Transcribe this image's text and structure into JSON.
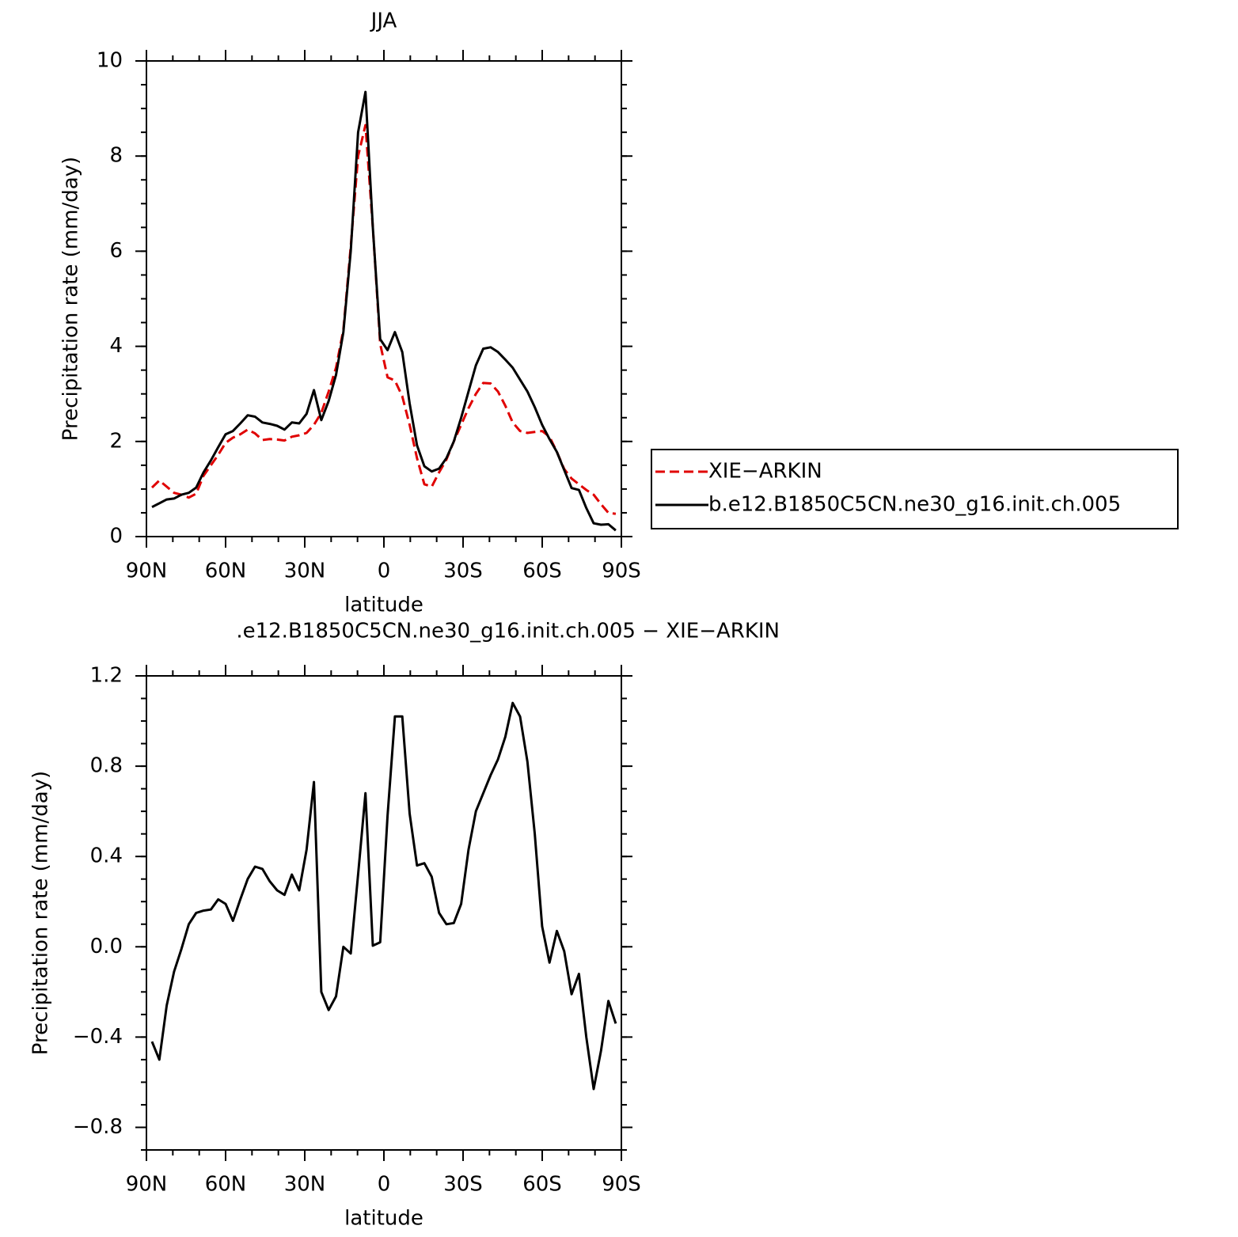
{
  "chart_data": [
    {
      "type": "line",
      "title": "JJA",
      "xlabel": "latitude",
      "ylabel": "Precipitation rate (mm/day)",
      "x": [
        87.9,
        85.11,
        82.32,
        79.53,
        76.74,
        73.95,
        71.16,
        68.37,
        65.58,
        62.79,
        60.0,
        57.21,
        54.42,
        51.63,
        48.84,
        46.05,
        43.26,
        40.47,
        37.68,
        34.89,
        32.1,
        29.31,
        26.52,
        23.73,
        20.94,
        18.15,
        15.36,
        12.57,
        9.78,
        6.99,
        4.2,
        1.41,
        -1.38,
        -4.17,
        -6.96,
        -9.75,
        -12.54,
        -15.33,
        -18.12,
        -20.91,
        -23.7,
        -26.49,
        -29.28,
        -32.07,
        -34.86,
        -37.65,
        -40.44,
        -43.23,
        -46.02,
        -48.81,
        -51.6,
        -54.39,
        -57.18,
        -59.97,
        -62.76,
        -65.55,
        -68.34,
        -71.13,
        -73.92,
        -76.71,
        -79.5,
        -82.29,
        -85.08,
        -87.87
      ],
      "series": [
        {
          "name": "XIE−ARKIN",
          "color": "#e00000",
          "dash": true,
          "values": [
            1.03,
            1.18,
            1.05,
            0.92,
            0.88,
            0.82,
            0.9,
            1.28,
            1.5,
            1.72,
            1.97,
            2.08,
            2.15,
            2.25,
            2.17,
            2.03,
            2.05,
            2.04,
            2.02,
            2.1,
            2.13,
            2.18,
            2.35,
            2.6,
            3.05,
            3.55,
            4.35,
            6.1,
            8.0,
            8.65,
            6.5,
            4.05,
            3.35,
            3.28,
            2.95,
            2.35,
            1.65,
            1.1,
            1.05,
            1.35,
            1.62,
            2.0,
            2.35,
            2.7,
            3.0,
            3.23,
            3.22,
            3.05,
            2.75,
            2.4,
            2.22,
            2.18,
            2.2,
            2.22,
            2.1,
            1.78,
            1.42,
            1.22,
            1.1,
            0.98,
            0.88,
            0.68,
            0.5,
            0.48
          ]
        },
        {
          "name": "b.e12.B1850C5CN.ne30_g16.init.ch.005",
          "color": "#000000",
          "dash": false,
          "values": [
            0.62,
            0.7,
            0.78,
            0.8,
            0.88,
            0.92,
            1.03,
            1.35,
            1.6,
            1.88,
            2.15,
            2.22,
            2.38,
            2.55,
            2.52,
            2.4,
            2.37,
            2.33,
            2.25,
            2.4,
            2.38,
            2.58,
            3.08,
            2.45,
            2.85,
            3.4,
            4.3,
            6.0,
            8.5,
            9.35,
            6.5,
            4.15,
            3.92,
            4.3,
            3.88,
            2.8,
            1.92,
            1.48,
            1.37,
            1.43,
            1.65,
            2.0,
            2.5,
            3.05,
            3.6,
            3.95,
            3.98,
            3.88,
            3.72,
            3.55,
            3.3,
            3.05,
            2.72,
            2.35,
            2.05,
            1.78,
            1.4,
            1.02,
            0.98,
            0.6,
            0.28,
            0.25,
            0.26,
            0.13
          ]
        }
      ],
      "xlim": [
        90,
        -90
      ],
      "xticks": [
        {
          "value": 90,
          "label": "90N"
        },
        {
          "value": 60,
          "label": "60N"
        },
        {
          "value": 30,
          "label": "30N"
        },
        0,
        {
          "value": -30,
          "label": "30S"
        },
        {
          "value": -60,
          "label": "60S"
        },
        {
          "value": -90,
          "label": "90S"
        }
      ],
      "ylim": [
        0,
        10
      ],
      "yticks": [
        0,
        2,
        4,
        6,
        8,
        10
      ],
      "legend": "right"
    },
    {
      "type": "line",
      "title": ".e12.B1850C5CN.ne30_g16.init.ch.005 − XIE−ARKIN",
      "xlabel": "latitude",
      "ylabel": "Precipitation rate (mm/day)",
      "x": [
        87.9,
        85.11,
        82.32,
        79.53,
        76.74,
        73.95,
        71.16,
        68.37,
        65.58,
        62.79,
        60.0,
        57.21,
        54.42,
        51.63,
        48.84,
        46.05,
        43.26,
        40.47,
        37.68,
        34.89,
        32.1,
        29.31,
        26.52,
        23.73,
        20.94,
        18.15,
        15.36,
        12.57,
        9.78,
        6.99,
        4.2,
        1.41,
        -1.38,
        -4.17,
        -6.96,
        -9.75,
        -12.54,
        -15.33,
        -18.12,
        -20.91,
        -23.7,
        -26.49,
        -29.28,
        -32.07,
        -34.86,
        -37.65,
        -40.44,
        -43.23,
        -46.02,
        -48.81,
        -51.6,
        -54.39,
        -57.18,
        -59.97,
        -62.76,
        -65.55,
        -68.34,
        -71.13,
        -73.92,
        -76.71,
        -79.5,
        -82.29,
        -85.08,
        -87.87
      ],
      "series": [
        {
          "color": "#000000",
          "dash": false,
          "values": [
            -0.42,
            -0.5,
            -0.26,
            -0.11,
            -0.01,
            0.1,
            0.15,
            0.16,
            0.165,
            0.21,
            0.19,
            0.115,
            0.21,
            0.3,
            0.355,
            0.345,
            0.29,
            0.25,
            0.23,
            0.32,
            0.25,
            0.43,
            0.73,
            -0.2,
            -0.28,
            -0.22,
            0.0,
            -0.03,
            0.32,
            0.68,
            0.005,
            0.02,
            0.58,
            1.02,
            1.02,
            0.59,
            0.36,
            0.37,
            0.31,
            0.15,
            0.1,
            0.105,
            0.19,
            0.43,
            0.6,
            0.68,
            0.76,
            0.83,
            0.93,
            1.08,
            1.02,
            0.82,
            0.5,
            0.09,
            -0.07,
            0.07,
            -0.02,
            -0.21,
            -0.12,
            -0.4,
            -0.63,
            -0.46,
            -0.24,
            -0.34
          ]
        }
      ],
      "xlim": [
        90,
        -90
      ],
      "xticks": [
        {
          "value": 90,
          "label": "90N"
        },
        {
          "value": 60,
          "label": "60N"
        },
        {
          "value": 30,
          "label": "30N"
        },
        0,
        {
          "value": -30,
          "label": "30S"
        },
        {
          "value": -60,
          "label": "60S"
        },
        {
          "value": -90,
          "label": "90S"
        }
      ],
      "ylim": [
        -0.9,
        1.2
      ],
      "yticks": [
        {
          "value": -0.8,
          "label": "−0.8"
        },
        {
          "value": -0.4,
          "label": "−0.4"
        },
        {
          "value": 0,
          "label": "0.0"
        },
        0.4,
        0.8,
        1.2
      ]
    }
  ]
}
